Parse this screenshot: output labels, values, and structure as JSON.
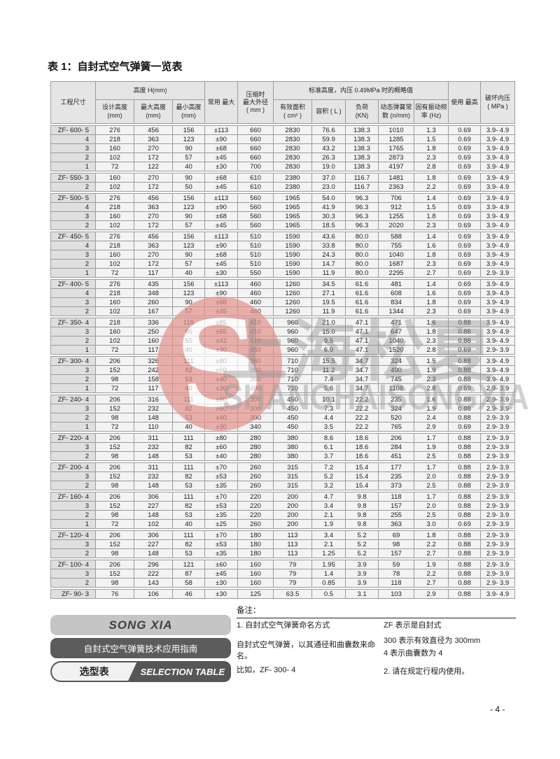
{
  "page": {
    "title": "表 1：自封式空气弹簧一览表",
    "page_number": "- 4 -"
  },
  "table": {
    "header": {
      "model": "工程尺寸",
      "height_group": "高度 H(mm)",
      "design_height": "设计高度\n(mm)",
      "max_height": "最大高度\n(mm)",
      "min_height": "最小高度\n(mm)",
      "common_max": "常用 最大",
      "compressed_od": "压缩时\n最大外径\n( mm )",
      "standard_group": "标准高度，内压 0.49MPa 时的概略值",
      "effective_area": "有效面积\n( cm² )",
      "volume": "容积 ( L )",
      "load": "负荷\n(KN)",
      "spring_rate": "动态弹簧常\n数 (n/mm)",
      "natural_freq": "固有振动频\n率 (Hz)",
      "use_max": "使用 最高",
      "burst_pressure": "破坏内压\n( MPa )"
    },
    "groups": [
      {
        "rows": [
          [
            "ZF- 600- 5",
            "276",
            "456",
            "156",
            "±113",
            "660",
            "2830",
            "76.6",
            "138.3",
            "1010",
            "1.3",
            "0.69",
            "3.9- 4.9"
          ],
          [
            "4",
            "218",
            "363",
            "123",
            "±90",
            "660",
            "2830",
            "59.9",
            "138.3",
            "1285",
            "1.5",
            "0.69",
            "3.9- 4.9"
          ],
          [
            "3",
            "160",
            "270",
            "90",
            "±68",
            "660",
            "2830",
            "43.2",
            "138.3",
            "1765",
            "1.8",
            "0.69",
            "3.9- 4.9"
          ],
          [
            "2",
            "102",
            "172",
            "57",
            "±45",
            "660",
            "2830",
            "26.3",
            "138.3",
            "2873",
            "2.3",
            "0.69",
            "3.9- 4.9"
          ],
          [
            "1",
            "72",
            "122",
            "40",
            "±30",
            "700",
            "2830",
            "19.0",
            "138.3",
            "4197",
            "2.8",
            "0.69",
            "3.9- 4.9"
          ]
        ]
      },
      {
        "rows": [
          [
            "ZF- 550- 3",
            "160",
            "270",
            "90",
            "±68",
            "610",
            "2380",
            "37.0",
            "116.7",
            "1481",
            "1.8",
            "0.69",
            "3.9- 4.9"
          ],
          [
            "2",
            "102",
            "172",
            "50",
            "±45",
            "610",
            "2380",
            "23.0",
            "116.7",
            "2363",
            "2.2",
            "0.69",
            "3.9- 4.9"
          ]
        ]
      },
      {
        "rows": [
          [
            "ZF- 500- 5",
            "276",
            "456",
            "156",
            "±113",
            "560",
            "1965",
            "54.0",
            "96.3",
            "706",
            "1.4",
            "0.69",
            "3.9- 4.9"
          ],
          [
            "4",
            "218",
            "363",
            "123",
            "±90",
            "560",
            "1965",
            "41.9",
            "96.3",
            "912",
            "1.5",
            "0.69",
            "3.9- 4.9"
          ],
          [
            "3",
            "160",
            "270",
            "90",
            "±68",
            "560",
            "1965",
            "30.3",
            "96.3",
            "1255",
            "1.8",
            "0.69",
            "3.9- 4.9"
          ],
          [
            "2",
            "102",
            "172",
            "57",
            "±45",
            "560",
            "1965",
            "18.5",
            "96.3",
            "2020",
            "2.3",
            "0.69",
            "3.9- 4.9"
          ]
        ]
      },
      {
        "rows": [
          [
            "ZF- 450- 5",
            "276",
            "456",
            "156",
            "±113",
            "510",
            "1590",
            "43.6",
            "80.0",
            "588",
            "1.4",
            "0.69",
            "3.9- 4.9"
          ],
          [
            "4",
            "218",
            "363",
            "123",
            "±90",
            "510",
            "1590",
            "33.8",
            "80.0",
            "755",
            "1.6",
            "0.69",
            "3.9- 4.9"
          ],
          [
            "3",
            "160",
            "270",
            "90",
            "±68",
            "510",
            "1590",
            "24.3",
            "80.0",
            "1040",
            "1.8",
            "0.69",
            "3.9- 4.9"
          ],
          [
            "2",
            "102",
            "172",
            "57",
            "±45",
            "510",
            "1590",
            "14.7",
            "80.0",
            "1687",
            "2.3",
            "0.69",
            "3.9- 4.9"
          ],
          [
            "1",
            "72",
            "117",
            "40",
            "±30",
            "550",
            "1590",
            "11.9",
            "80.0",
            "2295",
            "2.7",
            "0.69",
            "2.9- 3.9"
          ]
        ]
      },
      {
        "rows": [
          [
            "ZF- 400- 5",
            "276",
            "435",
            "156",
            "±113",
            "460",
            "1260",
            "34.5",
            "61.6",
            "481",
            "1.4",
            "0.69",
            "3.9- 4.9"
          ],
          [
            "4",
            "218",
            "348",
            "123",
            "±90",
            "460",
            "1260",
            "27.1",
            "61.6",
            "608",
            "1.6",
            "0.69",
            "3.9- 4.9"
          ],
          [
            "3",
            "160",
            "260",
            "90",
            "±68",
            "460",
            "1260",
            "19.5",
            "61.6",
            "834",
            "1.8",
            "0.69",
            "3.9- 4.9"
          ],
          [
            "2",
            "102",
            "167",
            "57",
            "±45",
            "460",
            "1260",
            "11.9",
            "61.6",
            "1344",
            "2.3",
            "0.69",
            "3.9- 4.9"
          ]
        ]
      },
      {
        "rows": [
          [
            "ZF- 350- 4",
            "218",
            "336",
            "118",
            "±85",
            "410",
            "960",
            "21.0",
            "47.1",
            "471",
            "1.6",
            "0.88",
            "3.9- 4.9"
          ],
          [
            "3",
            "160",
            "250",
            "85",
            "±65",
            "410",
            "960",
            "15.0",
            "47.1",
            "647",
            "1.8",
            "0.88",
            "3.9- 4.9"
          ],
          [
            "2",
            "102",
            "160",
            "55",
            "±42",
            "410",
            "960",
            "9.5",
            "47.1",
            "1040",
            "2.3",
            "0.88",
            "3.9- 4.9"
          ],
          [
            "1",
            "72",
            "117",
            "40",
            "±30",
            "450",
            "960",
            "6.9",
            "47.1",
            "1520",
            "2.8",
            "0.69",
            "2.9- 3.9"
          ]
        ]
      },
      {
        "rows": [
          [
            "ZF- 300- 4",
            "206",
            "326",
            "111",
            "±80",
            "360",
            "710",
            "15.5",
            "34.7",
            "324",
            "1.5",
            "0.88",
            "3.9- 4.9"
          ],
          [
            "3",
            "152",
            "242",
            "82",
            "±60",
            "360",
            "710",
            "11.2",
            "34.7",
            "490",
            "1.9",
            "0.88",
            "3.9- 4.9"
          ],
          [
            "2",
            "98",
            "158",
            "53",
            "±40",
            "360",
            "710",
            "7.4",
            "34.7",
            "745",
            "2.3",
            "0.88",
            "3.9- 4.9"
          ],
          [
            "1",
            "72",
            "117",
            "40",
            "±30",
            "400",
            "710",
            "5.6",
            "34.7",
            "1108",
            "2.8",
            "0.69",
            "2.9- 3.9"
          ]
        ]
      },
      {
        "rows": [
          [
            "ZF- 240- 4",
            "206",
            "316",
            "111",
            "±80",
            "300",
            "450",
            "10.1",
            "22.2",
            "235",
            "1.6",
            "0.88",
            "2.9- 3.9"
          ],
          [
            "3",
            "152",
            "232",
            "82",
            "±60",
            "300",
            "450",
            "7.3",
            "22.2",
            "324",
            "1.9",
            "0.88",
            "2.9- 3.9"
          ],
          [
            "2",
            "98",
            "148",
            "53",
            "±40",
            "300",
            "450",
            "4.4",
            "22.2",
            "520",
            "2.4",
            "0.88",
            "2.9- 3.9"
          ],
          [
            "1",
            "72",
            "110",
            "40",
            "±30",
            "340",
            "450",
            "3.5",
            "22.2",
            "765",
            "2.9",
            "0.69",
            "2.9- 3.9"
          ]
        ]
      },
      {
        "rows": [
          [
            "ZF- 220- 4",
            "206",
            "311",
            "111",
            "±80",
            "280",
            "380",
            "8.6",
            "18.6",
            "206",
            "1.7",
            "0.88",
            "2.9- 3.9"
          ],
          [
            "3",
            "152",
            "232",
            "82",
            "±60",
            "280",
            "380",
            "6.1",
            "18.6",
            "284",
            "1.9",
            "0.88",
            "2.9- 3.9"
          ],
          [
            "2",
            "98",
            "148",
            "53",
            "±40",
            "280",
            "380",
            "3.7",
            "18.6",
            "451",
            "2.5",
            "0.88",
            "2.9- 3.9"
          ]
        ]
      },
      {
        "rows": [
          [
            "ZF- 200- 4",
            "206",
            "311",
            "111",
            "±70",
            "260",
            "315",
            "7.2",
            "15.4",
            "177",
            "1.7",
            "0.88",
            "2.9- 3.9"
          ],
          [
            "3",
            "152",
            "232",
            "82",
            "±53",
            "260",
            "315",
            "5.2",
            "15.4",
            "235",
            "2.0",
            "0.88",
            "2.9- 3.9"
          ],
          [
            "2",
            "98",
            "148",
            "53",
            "±35",
            "260",
            "315",
            "3.2",
            "15.4",
            "373",
            "2.5",
            "0.88",
            "2.9- 3.9"
          ]
        ]
      },
      {
        "rows": [
          [
            "ZF- 160- 4",
            "206",
            "306",
            "111",
            "±70",
            "220",
            "200",
            "4.7",
            "9.8",
            "118",
            "1.7",
            "0.88",
            "2.9- 3.9"
          ],
          [
            "3",
            "152",
            "227",
            "82",
            "±53",
            "220",
            "200",
            "3.4",
            "9.8",
            "157",
            "2.0",
            "0.88",
            "2.9- 3.9"
          ],
          [
            "2",
            "98",
            "148",
            "53",
            "±35",
            "220",
            "200",
            "2.1",
            "9.8",
            "255",
            "2.5",
            "0.88",
            "2.9- 3.9"
          ],
          [
            "1",
            "72",
            "102",
            "40",
            "±25",
            "260",
            "200",
            "1.9",
            "9.8",
            "363",
            "3.0",
            "0.69",
            "2.9- 3.9"
          ]
        ]
      },
      {
        "rows": [
          [
            "ZF- 120- 4",
            "206",
            "306",
            "111",
            "±70",
            "180",
            "113",
            "3.4",
            "5.2",
            "69",
            "1.8",
            "0.88",
            "2.9- 3.9"
          ],
          [
            "3",
            "152",
            "227",
            "82",
            "±53",
            "180",
            "113",
            "2.1",
            "5.2",
            "98",
            "2.2",
            "0.88",
            "2.9- 3.9"
          ],
          [
            "2",
            "98",
            "148",
            "53",
            "±35",
            "180",
            "113",
            "1.25",
            "5.2",
            "157",
            "2.7",
            "0.88",
            "2.9- 3.9"
          ]
        ]
      },
      {
        "rows": [
          [
            "ZF- 100- 4",
            "206",
            "296",
            "121",
            "±60",
            "160",
            "79",
            "1.95",
            "3.9",
            "59",
            "1.9",
            "0.88",
            "2.9- 3.9"
          ],
          [
            "3",
            "152",
            "222",
            "87",
            "±45",
            "160",
            "79",
            "1.4",
            "3.9",
            "78",
            "2.2",
            "0.88",
            "2.9- 3.9"
          ],
          [
            "2",
            "98",
            "143",
            "58",
            "±30",
            "160",
            "79",
            "0.85",
            "3.9",
            "118",
            "2.7",
            "0.88",
            "2.9- 3.9"
          ]
        ]
      },
      {
        "rows": [
          [
            "ZF- 90- 3",
            "76",
            "106",
            "46",
            "±30",
            "125",
            "63.5",
            "0.5",
            "3.1",
            "103",
            "2.9",
            "0.88",
            "3.9- 4.9"
          ]
        ]
      }
    ]
  },
  "watermark": {
    "logo_letter": "S",
    "text_zh": "上海松夏",
    "text_en": "SHANGHAISONGXIA",
    "accent_pink": "#e2928c",
    "gray": "#8f8f8f"
  },
  "footer": {
    "brand_en": "SONG XIA",
    "brand_zh": "自封式空气弹簧技术应用指南",
    "selector_zh": "选型表",
    "selector_en": "SELECTION TABLE",
    "notes_heading": "备注：",
    "notes_left": [
      "1. 自封式空气弹簧命名方式",
      "自封式空气弹簧，以其通径和曲囊数来命名。",
      "比如，ZF- 300- 4"
    ],
    "notes_right": [
      "ZF 表示是自封式",
      "300 表示有效直径为 300mm",
      "4 表示曲囊数为 4",
      "2. 请在规定行程内使用。"
    ]
  }
}
